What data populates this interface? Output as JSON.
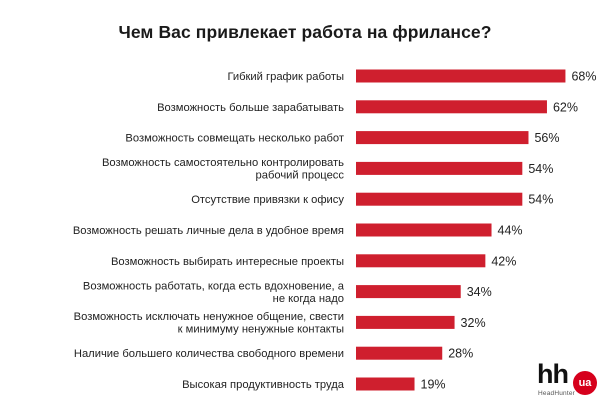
{
  "colors": {
    "bar": "#cf1f2e",
    "text": "#222222",
    "logo_accent": "#d6001c"
  },
  "logo": {
    "main": "hh",
    "badge": "ua",
    "subtitle": "HeadHunter"
  },
  "chart_data": {
    "type": "bar",
    "orientation": "horizontal",
    "title": "Чем Вас привлекает работа на фрилансе?",
    "xlabel": "",
    "ylabel": "",
    "xlim": [
      0,
      100
    ],
    "grid": false,
    "legend": "none",
    "categories": [
      [
        "Гибкий график работы"
      ],
      [
        "Возможность больше зарабатывать"
      ],
      [
        "Возможность совмещать несколько работ"
      ],
      [
        "Возможность самостоятельно контролировать",
        "рабочий процесс"
      ],
      [
        "Отсутствие привязки к офису"
      ],
      [
        "Возможность решать личные дела в удобное время"
      ],
      [
        "Возможность выбирать интересные проекты"
      ],
      [
        "Возможность работать, когда есть вдохновение, а",
        "не когда надо"
      ],
      [
        "Возможность исключать ненужное общение, свести",
        "к минимуму ненужные контакты"
      ],
      [
        "Наличие большего количества свободного времени"
      ],
      [
        "Высокая продуктивность труда"
      ]
    ],
    "values": [
      68,
      62,
      56,
      54,
      54,
      44,
      42,
      34,
      32,
      28,
      19
    ],
    "value_labels": [
      "68%",
      "62%",
      "56%",
      "54%",
      "54%",
      "44%",
      "42%",
      "34%",
      "32%",
      "28%",
      "19%"
    ]
  }
}
